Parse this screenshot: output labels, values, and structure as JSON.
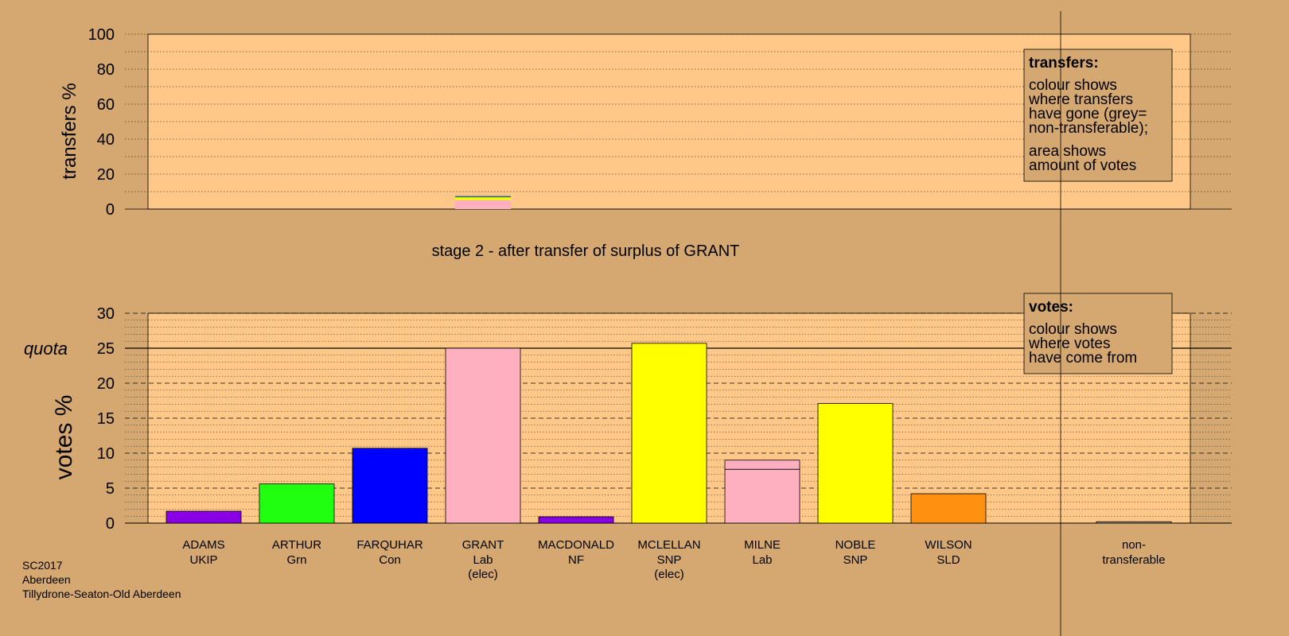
{
  "colors": {
    "background": "#D4A870",
    "plot_area": "#FFC888",
    "legend_box": "#D4A870",
    "UKIP": "#8A00E6",
    "Grn": "#20FF10",
    "Con": "#0000FF",
    "Lab": "#FFB0C0",
    "NF": "#8A00E6",
    "SNP": "#FFFF00",
    "SLD": "#FF9010",
    "non_transferable": "#B0A090"
  },
  "chart_data": [
    {
      "type": "bar",
      "name": "transfers",
      "ylabel": "transfers %",
      "ylim": [
        0,
        100
      ],
      "yticks": [
        0,
        20,
        40,
        60,
        80,
        100
      ],
      "grid": "dotted every 10",
      "title": "stage 2 - after transfer of surplus of GRANT",
      "categories": [
        "ADAMS",
        "ARTHUR",
        "FARQUHAR",
        "GRANT",
        "MACDONALD",
        "MCLELLAN",
        "MILNE",
        "NOBLE",
        "WILSON",
        "non-transferable"
      ],
      "transfer_column": "GRANT",
      "transfer_segments": [
        {
          "to": "MILNE",
          "party": "Lab",
          "value": 5.2
        },
        {
          "to": "NOBLE",
          "party": "SNP",
          "value": 0.8
        },
        {
          "to": "MCLELLAN",
          "party": "SNP",
          "value": 0.6
        },
        {
          "to": "ARTHUR",
          "party": "Grn",
          "value": 0.4
        },
        {
          "to": "FARQUHAR",
          "party": "Con",
          "value": 0.3
        },
        {
          "to": "WILSON",
          "party": "SLD",
          "value": 0.3
        },
        {
          "to": "non-transferable",
          "party": "non_transferable",
          "value": 0.2
        }
      ],
      "legend": {
        "position": "top-right",
        "title": "transfers:",
        "lines1": [
          "colour shows",
          "where transfers",
          "have gone (grey=",
          "non-transferable);"
        ],
        "lines2": [
          "area shows",
          "amount of votes"
        ]
      }
    },
    {
      "type": "bar",
      "name": "votes",
      "ylabel": "votes %",
      "ylim": [
        0,
        30
      ],
      "yticks": [
        0,
        5,
        10,
        15,
        20,
        25,
        30
      ],
      "quota": 25,
      "quota_label": "quota",
      "grid": "dashed every 5, dotted every 1",
      "candidates": [
        {
          "name": "ADAMS",
          "party": "UKIP",
          "elected": false,
          "segments": [
            {
              "from": "UKIP",
              "value": 1.7
            }
          ]
        },
        {
          "name": "ARTHUR",
          "party": "Grn",
          "elected": false,
          "segments": [
            {
              "from": "Grn",
              "value": 5.6
            }
          ]
        },
        {
          "name": "FARQUHAR",
          "party": "Con",
          "elected": false,
          "segments": [
            {
              "from": "Con",
              "value": 10.7
            }
          ]
        },
        {
          "name": "GRANT",
          "party": "Lab",
          "elected": true,
          "segments": [
            {
              "from": "Lab",
              "value": 25.0
            }
          ]
        },
        {
          "name": "MACDONALD",
          "party": "NF",
          "elected": false,
          "segments": [
            {
              "from": "NF",
              "value": 0.9
            }
          ]
        },
        {
          "name": "MCLELLAN",
          "party": "SNP",
          "elected": true,
          "segments": [
            {
              "from": "SNP",
              "value": 25.7
            }
          ]
        },
        {
          "name": "MILNE",
          "party": "Lab",
          "elected": false,
          "segments": [
            {
              "from": "Lab",
              "value": 7.7
            },
            {
              "from": "Lab",
              "value": 1.3
            }
          ]
        },
        {
          "name": "NOBLE",
          "party": "SNP",
          "elected": false,
          "segments": [
            {
              "from": "SNP",
              "value": 17.1
            }
          ]
        },
        {
          "name": "WILSON",
          "party": "SLD",
          "elected": false,
          "segments": [
            {
              "from": "SLD",
              "value": 4.2
            }
          ]
        }
      ],
      "non_transferable": {
        "line1": "non-",
        "line2": "transferable",
        "value": 0.2
      },
      "elected_label": "(elec)",
      "legend": {
        "position": "top-right",
        "title": "votes:",
        "lines": [
          "colour shows",
          "where votes",
          "have come from"
        ]
      }
    }
  ],
  "footer": {
    "lines": [
      "SC2017",
      "Aberdeen",
      "Tillydrone-Seaton-Old Aberdeen"
    ]
  }
}
